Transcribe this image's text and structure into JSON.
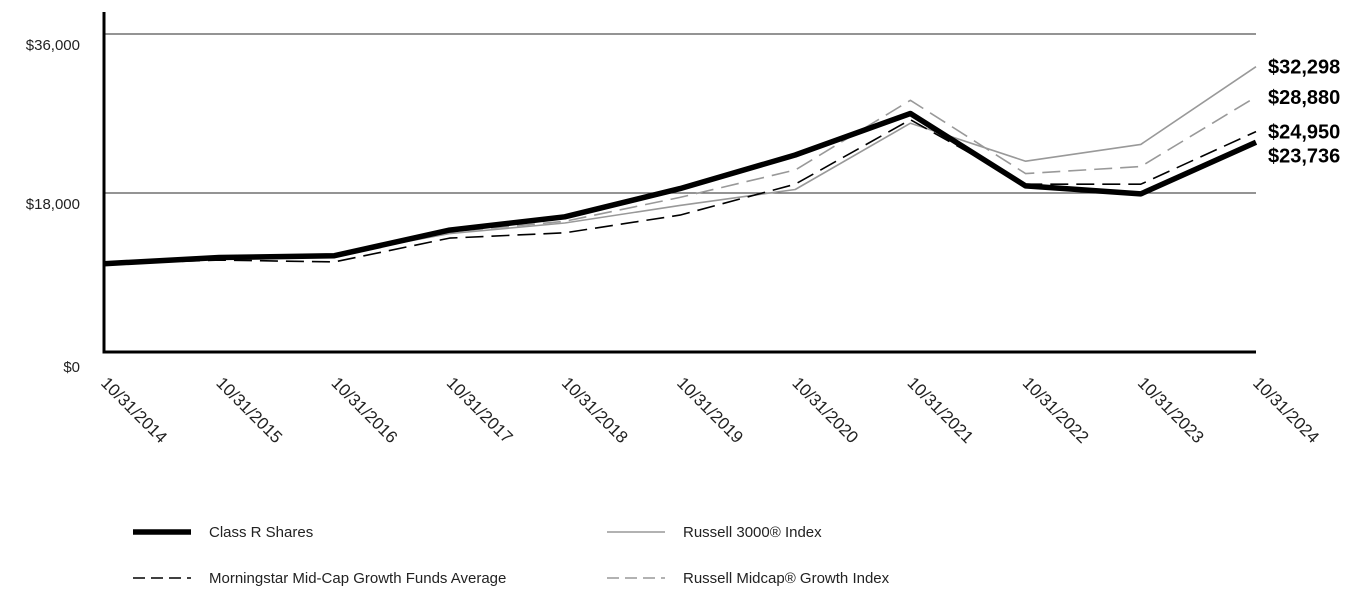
{
  "chart_data": {
    "type": "line",
    "x": [
      "10/31/2014",
      "10/31/2015",
      "10/31/2016",
      "10/31/2017",
      "10/31/2018",
      "10/31/2019",
      "10/31/2020",
      "10/31/2021",
      "10/31/2022",
      "10/31/2023",
      "10/31/2024"
    ],
    "ylim": [
      0,
      36000
    ],
    "yticks": [
      0,
      18000,
      36000
    ],
    "ytick_labels": [
      "$0",
      "$18,000",
      "$36,000"
    ],
    "grid": "horizontal",
    "legend_position": "bottom",
    "series": [
      {
        "name": "Class R Shares",
        "color": "#000000",
        "values": [
          10000,
          10700,
          10900,
          13800,
          15300,
          18500,
          22300,
          27000,
          18800,
          17900,
          23736
        ],
        "end_label": "$23,736"
      },
      {
        "name": "Russell 3000® Index",
        "color": "#999999",
        "values": [
          10000,
          10500,
          11000,
          13400,
          14600,
          16600,
          18400,
          25900,
          21600,
          23500,
          32298
        ],
        "end_label": "$32,298"
      },
      {
        "name": "Morningstar Mid-Cap Growth Funds Average",
        "color": "#000000",
        "values": [
          10000,
          10400,
          10200,
          12900,
          13500,
          15500,
          19000,
          26300,
          19000,
          19000,
          24950
        ],
        "end_label": "$24,950"
      },
      {
        "name": "Russell Midcap® Growth Index",
        "color": "#999999",
        "values": [
          10000,
          10500,
          10800,
          13600,
          14800,
          17500,
          20600,
          28500,
          20200,
          21000,
          28880
        ],
        "end_label": "$28,880"
      }
    ]
  }
}
